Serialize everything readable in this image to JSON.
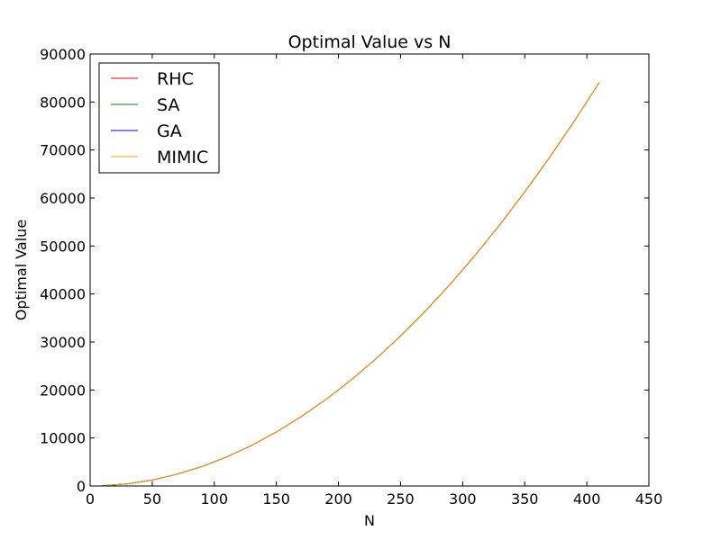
{
  "chart_data": {
    "type": "line",
    "title": "Optimal Value vs N",
    "xlabel": "N",
    "ylabel": "Optimal Value",
    "xlim": [
      0,
      450
    ],
    "ylim": [
      0,
      90000
    ],
    "xticks": [
      0,
      50,
      100,
      150,
      200,
      250,
      300,
      350,
      400,
      450
    ],
    "yticks": [
      0,
      10000,
      20000,
      30000,
      40000,
      50000,
      60000,
      70000,
      80000,
      90000
    ],
    "xtick_labels": [
      "0",
      "50",
      "100",
      "150",
      "200",
      "250",
      "300",
      "350",
      "400",
      "450"
    ],
    "ytick_labels": [
      "0",
      "10000",
      "20000",
      "30000",
      "40000",
      "50000",
      "60000",
      "70000",
      "80000",
      "90000"
    ],
    "grid": false,
    "legend_position": "top-left",
    "x": [
      10,
      30,
      50,
      70,
      90,
      110,
      130,
      150,
      170,
      190,
      210,
      230,
      250,
      270,
      290,
      310,
      330,
      350,
      370,
      390,
      410
    ],
    "series": [
      {
        "name": "RHC",
        "color": "#ff0000",
        "values": [
          50,
          450,
          1250,
          2450,
          4050,
          6050,
          8450,
          11250,
          14450,
          18050,
          22050,
          26450,
          31250,
          36450,
          42050,
          48050,
          54450,
          61250,
          68450,
          76050,
          84050
        ]
      },
      {
        "name": "SA",
        "color": "#008000",
        "values": [
          50,
          450,
          1250,
          2450,
          4050,
          6050,
          8450,
          11250,
          14450,
          18050,
          22050,
          26450,
          31250,
          36450,
          42050,
          48050,
          54450,
          61250,
          68450,
          76050,
          84050
        ]
      },
      {
        "name": "GA",
        "color": "#0000ff",
        "values": [
          50,
          450,
          1250,
          2450,
          4050,
          6050,
          8450,
          11250,
          14450,
          18050,
          22050,
          26450,
          31250,
          36450,
          42050,
          48050,
          54450,
          61250,
          68450,
          76050,
          84050
        ]
      },
      {
        "name": "MIMIC",
        "color": "#ffa500",
        "values": [
          50,
          450,
          1250,
          2450,
          4050,
          6050,
          8450,
          11250,
          14450,
          18050,
          22050,
          26450,
          31250,
          36450,
          42050,
          48050,
          54450,
          61250,
          68450,
          76050,
          84050
        ]
      }
    ]
  }
}
